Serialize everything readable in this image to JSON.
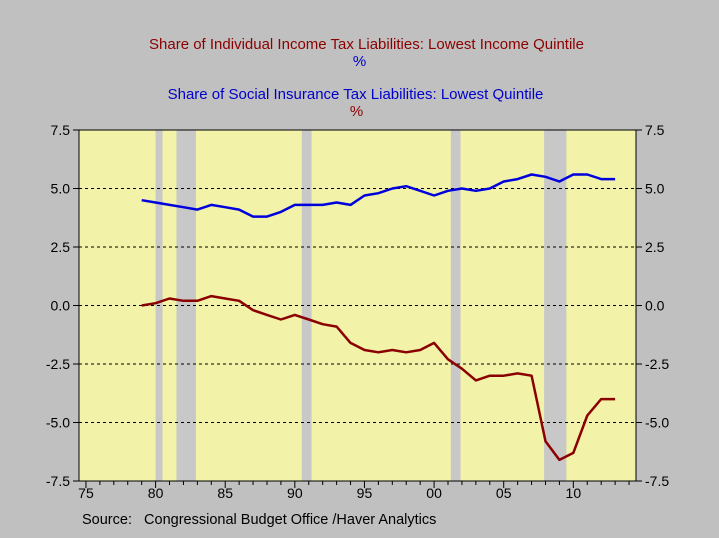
{
  "titles": {
    "series1": "Share of Individual Income Tax Liabilities: Lowest Income Quintile",
    "series1_unit": "%",
    "series2": "Share of Social Insurance Tax Liabilities: Lowest Quintile",
    "series2_unit": "%"
  },
  "source": "Source:   Congressional Budget Office /Haver Analytics",
  "colors": {
    "background": "#c0c0c0",
    "plot_area": "#f2f2a8",
    "recession": "#c8c8c8",
    "income_series": "#8b0000",
    "social_series": "#0000dd"
  },
  "chart_data": {
    "type": "line",
    "xlim": [
      1974.5,
      2014.5
    ],
    "ylim": [
      -7.5,
      7.5
    ],
    "x_ticks": [
      1975,
      1980,
      1985,
      1990,
      1995,
      2000,
      2005,
      2010
    ],
    "x_tick_labels": [
      "75",
      "80",
      "85",
      "90",
      "95",
      "00",
      "05",
      "10"
    ],
    "y_ticks": [
      7.5,
      5.0,
      2.5,
      0.0,
      -2.5,
      -5.0,
      -7.5
    ],
    "y_tick_labels": [
      "7.5",
      "5.0",
      "2.5",
      "0.0",
      "-2.5",
      "-5.0",
      "-7.5"
    ],
    "grid": "horizontal dashed",
    "recessions": [
      [
        1980.0,
        1980.5
      ],
      [
        1981.5,
        1982.9
      ],
      [
        1990.5,
        1991.2
      ],
      [
        2001.2,
        2001.9
      ],
      [
        2007.9,
        2009.5
      ]
    ],
    "x": [
      1979,
      1980,
      1981,
      1982,
      1983,
      1984,
      1985,
      1986,
      1987,
      1988,
      1989,
      1990,
      1991,
      1992,
      1993,
      1994,
      1995,
      1996,
      1997,
      1998,
      1999,
      2000,
      2001,
      2002,
      2003,
      2004,
      2005,
      2006,
      2007,
      2008,
      2009,
      2010,
      2011,
      2012,
      2013
    ],
    "series": [
      {
        "name": "Share of Individual Income Tax Liabilities: Lowest Income Quintile",
        "values": [
          0.0,
          0.1,
          0.3,
          0.2,
          0.2,
          0.4,
          0.3,
          0.2,
          -0.2,
          -0.4,
          -0.6,
          -0.4,
          -0.6,
          -0.8,
          -0.9,
          -1.6,
          -1.9,
          -2.0,
          -1.9,
          -2.0,
          -1.9,
          -1.6,
          -2.3,
          -2.7,
          -3.2,
          -3.0,
          -3.0,
          -2.9,
          -3.0,
          -5.8,
          -6.6,
          -6.3,
          -4.7,
          -4.0,
          -4.0
        ]
      },
      {
        "name": "Share of Social Insurance Tax Liabilities: Lowest Quintile",
        "values": [
          4.5,
          4.4,
          4.3,
          4.2,
          4.1,
          4.3,
          4.2,
          4.1,
          3.8,
          3.8,
          4.0,
          4.3,
          4.3,
          4.3,
          4.4,
          4.3,
          4.7,
          4.8,
          5.0,
          5.1,
          4.9,
          4.7,
          4.9,
          5.0,
          4.9,
          5.0,
          5.3,
          5.4,
          5.6,
          5.5,
          5.3,
          5.6,
          5.6,
          5.4,
          5.4
        ]
      }
    ]
  }
}
